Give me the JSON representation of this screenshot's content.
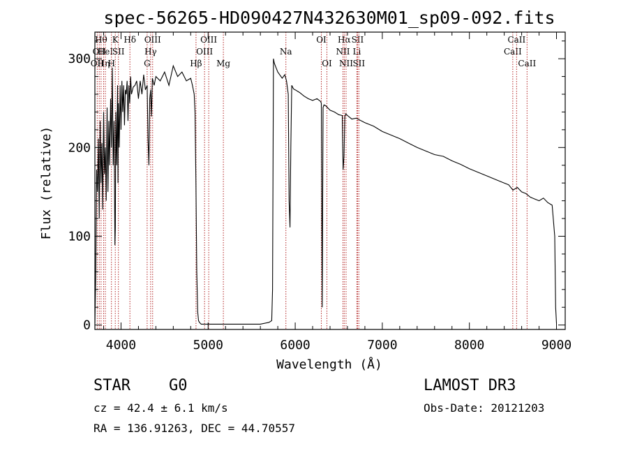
{
  "chart_data": {
    "type": "line",
    "title": "spec-56265-HD090427N432630M01_sp09-092.fits",
    "xlabel": "Wavelength (Å)",
    "ylabel": "Flux (relative)",
    "xlim": [
      3700,
      9100
    ],
    "ylim": [
      -5,
      330
    ],
    "xticks": [
      4000,
      5000,
      6000,
      7000,
      8000,
      9000
    ],
    "yticks": [
      0,
      100,
      200,
      300
    ],
    "series": [
      {
        "name": "spectrum",
        "x": [
          3700,
          3710,
          3720,
          3730,
          3740,
          3750,
          3760,
          3770,
          3780,
          3790,
          3800,
          3810,
          3820,
          3830,
          3840,
          3850,
          3860,
          3870,
          3880,
          3890,
          3900,
          3910,
          3920,
          3930,
          3935,
          3940,
          3950,
          3960,
          3965,
          3970,
          3980,
          3990,
          4000,
          4010,
          4020,
          4030,
          4040,
          4050,
          4060,
          4070,
          4080,
          4090,
          4100,
          4110,
          4120,
          4140,
          4160,
          4180,
          4200,
          4220,
          4240,
          4260,
          4280,
          4300,
          4310,
          4320,
          4330,
          4340,
          4350,
          4360,
          4380,
          4400,
          4450,
          4500,
          4550,
          4600,
          4650,
          4700,
          4750,
          4800,
          4820,
          4840,
          4850,
          4860,
          4870,
          4880,
          4890,
          4900,
          4910,
          4920,
          5000,
          5200,
          5400,
          5600,
          5700,
          5730,
          5740,
          5750,
          5760,
          5780,
          5800,
          5850,
          5880,
          5900,
          5920,
          5930,
          5940,
          5950,
          5960,
          5970,
          5980,
          6000,
          6050,
          6100,
          6150,
          6200,
          6250,
          6290,
          6300,
          6310,
          6320,
          6330,
          6350,
          6400,
          6450,
          6500,
          6540,
          6550,
          6560,
          6570,
          6580,
          6600,
          6650,
          6700,
          6800,
          6900,
          7000,
          7100,
          7200,
          7300,
          7400,
          7500,
          7600,
          7700,
          7800,
          7900,
          8000,
          8100,
          8200,
          8300,
          8400,
          8450,
          8500,
          8550,
          8600,
          8650,
          8700,
          8750,
          8800,
          8850,
          8900,
          8950,
          8980,
          8990,
          9000
        ],
        "values": [
          2,
          55,
          175,
          150,
          210,
          120,
          230,
          160,
          205,
          130,
          240,
          170,
          200,
          140,
          245,
          150,
          230,
          180,
          255,
          200,
          290,
          180,
          230,
          90,
          110,
          240,
          180,
          270,
          160,
          250,
          200,
          270,
          220,
          275,
          240,
          270,
          225,
          265,
          260,
          275,
          230,
          270,
          250,
          280,
          260,
          268,
          270,
          275,
          255,
          275,
          260,
          282,
          265,
          270,
          210,
          180,
          255,
          265,
          235,
          278,
          270,
          280,
          275,
          285,
          270,
          292,
          280,
          285,
          275,
          278,
          270,
          260,
          240,
          160,
          60,
          15,
          5,
          3,
          2,
          1,
          1,
          1,
          1,
          1,
          3,
          5,
          40,
          300,
          295,
          290,
          285,
          278,
          282,
          275,
          260,
          140,
          110,
          200,
          270,
          268,
          266,
          265,
          262,
          258,
          255,
          253,
          255,
          252,
          250,
          20,
          245,
          248,
          247,
          242,
          240,
          237,
          236,
          175,
          190,
          235,
          238,
          236,
          232,
          233,
          228,
          224,
          218,
          214,
          210,
          205,
          200,
          196,
          192,
          190,
          185,
          181,
          176,
          172,
          168,
          164,
          160,
          158,
          152,
          155,
          150,
          148,
          144,
          142,
          140,
          143,
          138,
          135,
          100,
          20,
          2
        ]
      }
    ],
    "line_markers": [
      {
        "x": 3727,
        "label": "OII",
        "row": 3
      },
      {
        "x": 3750,
        "label": "OII",
        "row": 2
      },
      {
        "x": 3771,
        "label": "Hθ",
        "row": 1
      },
      {
        "x": 3800,
        "label": "Hη",
        "row": 3
      },
      {
        "x": 3820,
        "label": "HeI",
        "row": 2
      },
      {
        "x": 3890,
        "label": "H",
        "row": 3
      },
      {
        "x": 3934,
        "label": "K",
        "row": 1
      },
      {
        "x": 3970,
        "label": "SII",
        "row": 2
      },
      {
        "x": 4102,
        "label": "Hδ",
        "row": 1
      },
      {
        "x": 4300,
        "label": "G",
        "row": 3
      },
      {
        "x": 4340,
        "label": "Hγ",
        "row": 2
      },
      {
        "x": 4363,
        "label": "OIII",
        "row": 1
      },
      {
        "x": 4861,
        "label": "Hβ",
        "row": 3
      },
      {
        "x": 4959,
        "label": "OIII",
        "row": 2
      },
      {
        "x": 5007,
        "label": "OIII",
        "row": 1
      },
      {
        "x": 5175,
        "label": "Mg",
        "row": 3
      },
      {
        "x": 5893,
        "label": "Na",
        "row": 2
      },
      {
        "x": 6300,
        "label": "OI",
        "row": 1
      },
      {
        "x": 6364,
        "label": "OI",
        "row": 3
      },
      {
        "x": 6548,
        "label": "NII",
        "row": 2
      },
      {
        "x": 6563,
        "label": "Hα",
        "row": 1
      },
      {
        "x": 6584,
        "label": "NII",
        "row": 3
      },
      {
        "x": 6708,
        "label": "Li",
        "row": 2
      },
      {
        "x": 6716,
        "label": "SII",
        "row": 1
      },
      {
        "x": 6731,
        "label": "SII",
        "row": 3
      },
      {
        "x": 8498,
        "label": "CaII",
        "row": 2
      },
      {
        "x": 8542,
        "label": "CaII",
        "row": 1
      },
      {
        "x": 8662,
        "label": "CaII",
        "row": 3
      }
    ]
  },
  "info": {
    "class_label": "STAR",
    "subclass_label": "G0",
    "survey": "LAMOST DR3",
    "redshift": "cz = 42.4 ± 6.1 km/s",
    "obs_date": "Obs-Date: 20121203",
    "coords": "RA = 136.91263, DEC =  44.70557"
  }
}
